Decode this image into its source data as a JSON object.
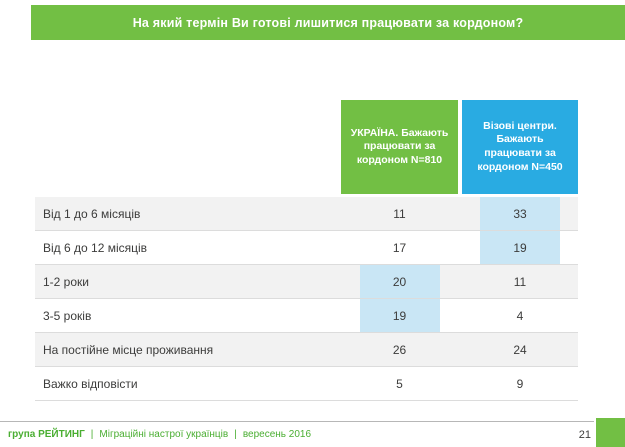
{
  "slide": {
    "title": "На який термін Ви готові лишитися працювати за кордоном?",
    "page_number": "21"
  },
  "table": {
    "columns": [
      {
        "label": "УКРАЇНА. Бажають працювати за кордоном N=810",
        "color": "#72bf44"
      },
      {
        "label": "Візові центри. Бажають працювати за кордоном N=450",
        "color": "#29abe2"
      }
    ],
    "rows": [
      {
        "label": "Від 1 до 6 місяців",
        "values": [
          "11",
          "33"
        ],
        "highlight": [
          false,
          true
        ]
      },
      {
        "label": "Від 6 до 12 місяців",
        "values": [
          "17",
          "19"
        ],
        "highlight": [
          false,
          true
        ]
      },
      {
        "label": "1-2 роки",
        "values": [
          "20",
          "11"
        ],
        "highlight": [
          true,
          false
        ]
      },
      {
        "label": "3-5 років",
        "values": [
          "19",
          "4"
        ],
        "highlight": [
          true,
          false
        ]
      },
      {
        "label": "На постійне місце проживання",
        "values": [
          "26",
          "24"
        ],
        "highlight": [
          false,
          false
        ]
      },
      {
        "label": "Важко відповісти",
        "values": [
          "5",
          "9"
        ],
        "highlight": [
          false,
          false
        ]
      }
    ]
  },
  "footer": {
    "brand": "група РЕЙТИНГ",
    "separator": "|",
    "project": "Міграційні настрої українців",
    "date": "вересень 2016"
  },
  "colors": {
    "green": "#72bf44",
    "blue": "#29abe2",
    "highlight": "#c9e6f5",
    "row-alt": "#f2f2f2",
    "text": "#3c3c3b",
    "footer-green": "#4aae32"
  },
  "chart_data": {
    "type": "table",
    "title": "На який термін Ви готові лишитися працювати за кордоном?",
    "columns": [
      "УКРАЇНА. Бажають працювати за кордоном N=810",
      "Візові центри. Бажають працювати за кордоном N=450"
    ],
    "categories": [
      "Від 1 до 6 місяців",
      "Від 6 до 12 місяців",
      "1-2 роки",
      "3-5 років",
      "На постійне місце проживання",
      "Важко відповісти"
    ],
    "series": [
      {
        "name": "УКРАЇНА. Бажають працювати за кордоном N=810",
        "values": [
          11,
          17,
          20,
          19,
          26,
          5
        ]
      },
      {
        "name": "Візові центри. Бажають працювати за кордоном N=450",
        "values": [
          33,
          19,
          11,
          4,
          24,
          9
        ]
      }
    ],
    "highlighted_cells": [
      {
        "category": "Від 1 до 6 місяців",
        "series": 1,
        "value": 33
      },
      {
        "category": "Від 6 до 12 місяців",
        "series": 1,
        "value": 19
      },
      {
        "category": "1-2 роки",
        "series": 0,
        "value": 20
      },
      {
        "category": "3-5 років",
        "series": 0,
        "value": 19
      }
    ],
    "legend_position": "top",
    "grid": false
  }
}
